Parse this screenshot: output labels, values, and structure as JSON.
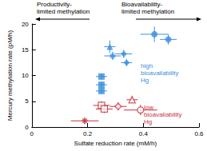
{
  "chart_data": {
    "type": "scatter",
    "x_label": "Sulfate reduction rate (mM/h)",
    "y_label": "Mercury methylation rate (pM/h)",
    "xlim": [
      0,
      0.6
    ],
    "xticks": [
      0,
      0.2,
      0.4,
      0.6
    ],
    "ylim": [
      0,
      20
    ],
    "yticks": [
      0,
      5,
      10,
      15,
      20
    ],
    "grid": false,
    "annotations": [
      {
        "text": "Productivity-\nlimited methylation",
        "color": "#000000"
      },
      {
        "text": "Bioavailability-\nlimited methylation",
        "color": "#000000"
      },
      {
        "text": "high bioavailability Hg",
        "color": "#3b8fdc"
      },
      {
        "text": "low bioavailability Hg",
        "color": "#c8333f"
      }
    ],
    "series": [
      {
        "color": "#3b8fdc",
        "marker": "circle",
        "x": [
          0.44,
          0.49
        ],
        "values": [
          18,
          17
        ],
        "x_err": [
          0.05,
          0.03
        ],
        "y_err": [
          1.5,
          1.0
        ]
      },
      {
        "color": "#3b8fdc",
        "marker": "triangle",
        "x": [
          0.28
        ],
        "values": [
          15.6
        ],
        "x_err": [
          0.02
        ],
        "y_err": [
          1.2
        ]
      },
      {
        "color": "#3b8fdc",
        "marker": "asterisk",
        "x": [
          0.29
        ],
        "values": [
          13.8
        ],
        "x_err": [
          0.03
        ],
        "y_err": [
          0.8
        ]
      },
      {
        "color": "#3b8fdc",
        "marker": "diamond",
        "x": [
          0.33,
          0.34
        ],
        "values": [
          14.2,
          12.5
        ],
        "x_err": [
          0.03,
          0.02
        ],
        "y_err": [
          0.8,
          0.7
        ]
      },
      {
        "color": "#3b8fdc",
        "marker": "square",
        "x": [
          0.25,
          0.25,
          0.25
        ],
        "values": [
          9.8,
          8.2,
          7.0
        ],
        "x_err": [
          0.02,
          0.02,
          0.02
        ],
        "y_err": [
          0.6,
          0.6,
          0.6
        ]
      },
      {
        "color": "#c8333f",
        "marker": "open_square",
        "x": [
          0.25,
          0.26
        ],
        "values": [
          4.2,
          3.5
        ],
        "x_err": [
          0.03,
          0.03
        ],
        "y_err": [
          0.8,
          0.8
        ]
      },
      {
        "color": "#c8333f",
        "marker": "open_diamond",
        "x": [
          0.31
        ],
        "values": [
          4.0
        ],
        "x_err": [
          0.03
        ],
        "y_err": [
          0.8
        ]
      },
      {
        "color": "#c8333f",
        "marker": "open_triangle",
        "x": [
          0.36
        ],
        "values": [
          5.3
        ],
        "x_err": [
          0.02
        ],
        "y_err": [
          0.6
        ]
      },
      {
        "color": "#c8333f",
        "marker": "open_circle",
        "x": [
          0.39
        ],
        "values": [
          3.3
        ],
        "x_err": [
          0.06
        ],
        "y_err": [
          1.0
        ]
      },
      {
        "color": "#c8333f",
        "marker": "asterisk",
        "x": [
          0.19
        ],
        "values": [
          1.2
        ],
        "x_err": [
          0.05
        ],
        "y_err": [
          0.6
        ]
      }
    ]
  }
}
